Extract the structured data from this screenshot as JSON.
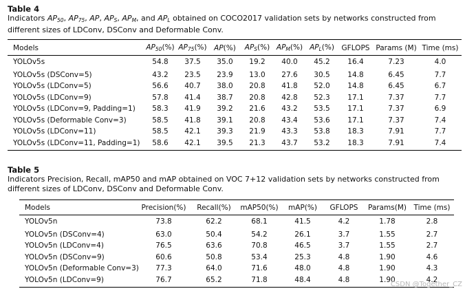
{
  "table4": {
    "label": "Table 4",
    "caption_lead": "Indicators ",
    "caption_tail": " obtained on COCO2017 validation sets by networks constructed from different sizes of LDConv, DSConv and Deformable Conv.",
    "header": {
      "models": "Models",
      "ap50": "AP50(%)",
      "ap75": "AP75(%)",
      "ap": "AP(%)",
      "aps": "APS(%)",
      "apm": "APM(%)",
      "apl": "APL(%)",
      "gflops": "GFLOPS",
      "params": "Params (M)",
      "time": "Time (ms)"
    },
    "rows": [
      [
        "YOLOv5s",
        "54.8",
        "37.5",
        "35.0",
        "19.2",
        "40.0",
        "45.2",
        "16.4",
        "7.23",
        "4.0"
      ],
      [
        "YOLOv5s (DSConv=5)",
        "43.2",
        "23.5",
        "23.9",
        "13.0",
        "27.6",
        "30.5",
        "14.8",
        "6.45",
        "7.7"
      ],
      [
        "YOLOv5s (LDConv=5)",
        "56.6",
        "40.7",
        "38.0",
        "20.8",
        "41.8",
        "52.0",
        "14.8",
        "6.45",
        "6.7"
      ],
      [
        "YOLOv5s (LDConv=9)",
        "57.8",
        "41.4",
        "38.7",
        "20.8",
        "42.8",
        "52.3",
        "17.1",
        "7.37",
        "7.7"
      ],
      [
        "YOLOv5s (LDConv=9, Padding=1)",
        "58.3",
        "41.9",
        "39.2",
        "21.6",
        "43.2",
        "53.5",
        "17.1",
        "7.37",
        "6.9"
      ],
      [
        "YOLOv5s (Deformable Conv=3)",
        "58.5",
        "41.8",
        "39.1",
        "20.8",
        "43.4",
        "53.6",
        "17.1",
        "7.37",
        "7.4"
      ],
      [
        "YOLOv5s (LDConv=11)",
        "58.5",
        "42.1",
        "39.3",
        "21.9",
        "43.3",
        "53.8",
        "18.3",
        "7.91",
        "7.7"
      ],
      [
        "YOLOv5s (LDConv=11, Padding=1)",
        "58.6",
        "42.1",
        "39.5",
        "21.3",
        "43.7",
        "53.2",
        "18.3",
        "7.91",
        "7.4"
      ]
    ]
  },
  "table5": {
    "label": "Table 5",
    "caption": "Indicators Precision, Recall, mAP50 and mAP obtained on VOC 7+12 validation sets by networks constructed from different sizes of LDConv, DSConv and Deformable Conv.",
    "header": {
      "models": "Models",
      "precision": "Precision(%)",
      "recall": "Recall(%)",
      "map50": "mAP50(%)",
      "map": "mAP(%)",
      "gflops": "GFLOPS",
      "params": "Params(M)",
      "time": "Time (ms)"
    },
    "rows": [
      [
        "YOLOv5n",
        "73.8",
        "62.2",
        "68.1",
        "41.5",
        "4.2",
        "1.78",
        "2.8"
      ],
      [
        "YOLOv5n (DSConv=4)",
        "63.0",
        "50.4",
        "54.2",
        "26.1",
        "3.7",
        "1.55",
        "2.7"
      ],
      [
        "YOLOv5n (LDConv=4)",
        "76.5",
        "63.6",
        "70.8",
        "46.5",
        "3.7",
        "1.55",
        "2.7"
      ],
      [
        "YOLOv5n (DSConv=9)",
        "60.6",
        "50.8",
        "53.4",
        "25.3",
        "4.8",
        "1.90",
        "4.6"
      ],
      [
        "YOLOv5n (Deformable Conv=3)",
        "77.3",
        "64.0",
        "71.6",
        "48.0",
        "4.8",
        "1.90",
        "4.3"
      ],
      [
        "YOLOv5n (LDConv=9)",
        "76.7",
        "65.2",
        "71.8",
        "48.4",
        "4.8",
        "1.90",
        "4.2"
      ]
    ]
  },
  "watermark": "CSDN @Together_CZ"
}
